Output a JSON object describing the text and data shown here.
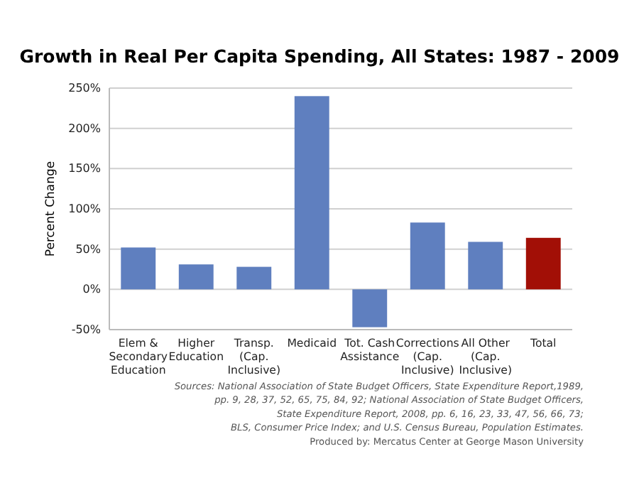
{
  "chart_data": {
    "type": "bar",
    "title": "Growth in Real Per Capita Spending, All States: 1987 - 2009",
    "ylabel": "Percent Change",
    "categories": [
      "Elem & Secondary Education",
      "Higher Education",
      "Transp. (Cap. Inclusive)",
      "Medicaid",
      "Tot. Cash Assistance",
      "Corrections (Cap. Inclusive)",
      "All Other (Cap. Inclusive)",
      "Total"
    ],
    "values": [
      52,
      31,
      28,
      240,
      -47,
      83,
      59,
      64
    ],
    "colors": [
      "#5f7fbf",
      "#5f7fbf",
      "#5f7fbf",
      "#5f7fbf",
      "#5f7fbf",
      "#5f7fbf",
      "#5f7fbf",
      "#a20f06"
    ],
    "ylim": [
      -50,
      250
    ],
    "yticks": [
      {
        "value": -50,
        "label": "-50%"
      },
      {
        "value": 0,
        "label": "0%"
      },
      {
        "value": 50,
        "label": "50%"
      },
      {
        "value": 100,
        "label": "100%"
      },
      {
        "value": 150,
        "label": "150%"
      },
      {
        "value": 200,
        "label": "200%"
      },
      {
        "value": 250,
        "label": "250%"
      }
    ],
    "grid": "y",
    "annotations": [
      "Sources: National Association of State Budget Officers, State Expenditure Report,1989,",
      "pp. 9, 28, 37, 52, 65, 75, 84, 92; National Association of State Budget Officers,",
      "State Expenditure Report, 2008, pp. 6, 16, 23, 33, 47, 56, 66, 73;",
      "BLS, Consumer Price Index; and U.S. Census Bureau, Population Estimates.",
      "Produced by: Mercatus Center at George Mason University"
    ]
  }
}
